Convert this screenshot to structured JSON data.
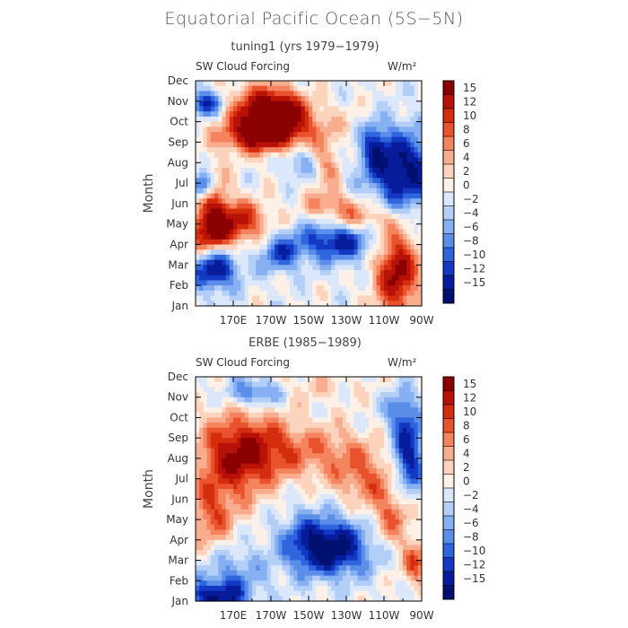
{
  "title": "Equatorial Pacific Ocean (5S−5N)",
  "chart_data": [
    {
      "type": "heatmap",
      "title": "tuning1 (yrs 1979−1979)",
      "variable": "SW Cloud Forcing",
      "units": "W/m²",
      "ylabel": "Month",
      "y_ticks": [
        "Jan",
        "Feb",
        "Mar",
        "Apr",
        "May",
        "Jun",
        "Jul",
        "Aug",
        "Sep",
        "Oct",
        "Nov",
        "Dec"
      ],
      "x_ticks": [
        "170E",
        "170W",
        "150W",
        "130W",
        "110W",
        "90W"
      ],
      "xlim": [
        "150E",
        "90W"
      ],
      "blobs": [
        {
          "lon": -175,
          "m": 10.3,
          "v": 14,
          "sx": 12,
          "sy": 1.0
        },
        {
          "lon": -165,
          "m": 10.2,
          "v": 12,
          "sx": 10,
          "sy": 0.8
        },
        {
          "lon": -178,
          "m": 9.0,
          "v": 12,
          "sx": 14,
          "sy": 0.6
        },
        {
          "lon": 158,
          "m": 4.0,
          "v": 16,
          "sx": 8,
          "sy": 0.9
        },
        {
          "lon": 175,
          "m": 4.5,
          "v": 11,
          "sx": 10,
          "sy": 0.8
        },
        {
          "lon": 160,
          "m": 6.0,
          "v": 10,
          "sx": 5,
          "sy": 1.0
        },
        {
          "lon": -103,
          "m": 1.8,
          "v": 16,
          "sx": 8,
          "sy": 1.6
        },
        {
          "lon": -125,
          "m": 4.6,
          "v": 9,
          "sx": 13,
          "sy": 0.6
        },
        {
          "lon": -140,
          "m": 5.5,
          "v": 6,
          "sx": 10,
          "sy": 0.5
        },
        {
          "lon": -140,
          "m": 7.5,
          "v": 6,
          "sx": 5,
          "sy": 0.8
        },
        {
          "lon": -135,
          "m": 3.5,
          "v": -14,
          "sx": 14,
          "sy": 0.8
        },
        {
          "lon": -165,
          "m": 2.8,
          "v": -10,
          "sx": 8,
          "sy": 0.7
        },
        {
          "lon": 160,
          "m": 2.0,
          "v": -15,
          "sx": 9,
          "sy": 0.8
        },
        {
          "lon": 155,
          "m": 6.4,
          "v": -14,
          "sx": 5,
          "sy": 0.5
        },
        {
          "lon": -100,
          "m": 7.2,
          "v": -16,
          "sx": 13,
          "sy": 1.5
        },
        {
          "lon": -115,
          "m": 8.5,
          "v": -10,
          "sx": 5,
          "sy": 0.8
        },
        {
          "lon": 155,
          "m": 10.8,
          "v": -13,
          "sx": 6,
          "sy": 0.5
        },
        {
          "lon": -155,
          "m": 7.6,
          "v": -6,
          "sx": 6,
          "sy": 0.6
        },
        {
          "lon": -150,
          "m": 9.5,
          "v": 5,
          "sx": 15,
          "sy": 0.8
        }
      ]
    },
    {
      "type": "heatmap",
      "title": "ERBE (1985−1989)",
      "variable": "SW Cloud Forcing",
      "units": "W/m²",
      "ylabel": "Month",
      "y_ticks": [
        "Jan",
        "Feb",
        "Mar",
        "Apr",
        "May",
        "Jun",
        "Jul",
        "Aug",
        "Sep",
        "Oct",
        "Nov",
        "Dec"
      ],
      "x_ticks": [
        "170E",
        "170W",
        "150W",
        "130W",
        "110W",
        "90W"
      ],
      "xlim": [
        "150E",
        "90W"
      ],
      "blobs": [
        {
          "lon": 170,
          "m": 7.5,
          "v": 11,
          "sx": 14,
          "sy": 1.6
        },
        {
          "lon": -175,
          "m": 8.2,
          "v": 8,
          "sx": 16,
          "sy": 1.2
        },
        {
          "lon": -140,
          "m": 8.0,
          "v": 6,
          "sx": 18,
          "sy": 1.0
        },
        {
          "lon": -120,
          "m": 6.5,
          "v": 7,
          "sx": 12,
          "sy": 1.0
        },
        {
          "lon": -105,
          "m": 4.5,
          "v": 8,
          "sx": 8,
          "sy": 1.2
        },
        {
          "lon": 158,
          "m": 4.5,
          "v": 8,
          "sx": 8,
          "sy": 1.2
        },
        {
          "lon": -93,
          "m": 2.0,
          "v": 9,
          "sx": 5,
          "sy": 0.8
        },
        {
          "lon": -135,
          "m": 2.8,
          "v": -14,
          "sx": 14,
          "sy": 1.0
        },
        {
          "lon": -150,
          "m": 3.2,
          "v": -8,
          "sx": 12,
          "sy": 1.2
        },
        {
          "lon": 160,
          "m": 0.2,
          "v": -14,
          "sx": 12,
          "sy": 0.6
        },
        {
          "lon": 170,
          "m": 1.5,
          "v": -6,
          "sx": 12,
          "sy": 0.9
        },
        {
          "lon": -97,
          "m": 7.8,
          "v": -14,
          "sx": 6,
          "sy": 1.6
        },
        {
          "lon": -102,
          "m": 10.2,
          "v": -6,
          "sx": 6,
          "sy": 0.8
        },
        {
          "lon": -178,
          "m": 11.2,
          "v": -10,
          "sx": 10,
          "sy": 0.5
        },
        {
          "lon": -150,
          "m": 11.5,
          "v": 3,
          "sx": 20,
          "sy": 0.6
        }
      ]
    }
  ],
  "colorbar": {
    "labels": [
      "15",
      "12",
      "10",
      "8",
      "6",
      "4",
      "2",
      "0",
      "−2",
      "−4",
      "−6",
      "−8",
      "−10",
      "−12",
      "−15"
    ],
    "colors": [
      "#8b0000",
      "#b81208",
      "#d42d0e",
      "#e8522d",
      "#f4845e",
      "#f9ad8f",
      "#fcd3bd",
      "#fdf0e6",
      "#dbe8fb",
      "#b3cef7",
      "#86b0f2",
      "#5a8ee9",
      "#2f65dd",
      "#1238c4",
      "#071c9a",
      "#001070"
    ]
  }
}
